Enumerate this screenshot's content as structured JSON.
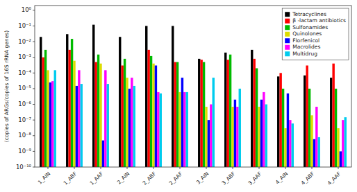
{
  "chart_data": {
    "type": "bar",
    "categories": [
      "1_AIN",
      "1_ABF",
      "1_AAF",
      "2_AIN",
      "2_ABF",
      "2_AAF",
      "3_AIN",
      "3_ABF",
      "3_AAF",
      "4_AIN",
      "4_ABF",
      "4_AAF"
    ],
    "series": [
      {
        "name": "Tetracyclines",
        "color": "#000000",
        "values": [
          0.02,
          0.03,
          0.12,
          0.02,
          0.1,
          0.1,
          0.0008,
          0.002,
          0.003,
          6e-05,
          7e-05,
          5e-05
        ]
      },
      {
        "name": "β -lactam antibiotics",
        "color": "#ff0000",
        "values": [
          0.001,
          0.003,
          0.0005,
          0.0003,
          0.003,
          0.0005,
          0.0007,
          0.0007,
          0.0008,
          0.0001,
          0.0003,
          0.0004
        ]
      },
      {
        "name": "Sulfonamides",
        "color": "#00bb00",
        "values": [
          0.003,
          0.015,
          0.0015,
          0.0008,
          0.0012,
          0.0005,
          0.0005,
          0.0015,
          0.0002,
          1e-05,
          1e-05,
          1e-05
        ]
      },
      {
        "name": "Quinolones",
        "color": "#dddd00",
        "values": [
          0.00015,
          0.0006,
          0.0004,
          5e-05,
          0.0004,
          6e-06,
          7e-07,
          7e-07,
          7e-07,
          3e-08,
          2e-07,
          3e-08
        ]
      },
      {
        "name": "Florfenicol",
        "color": "#0000ff",
        "values": [
          2.5e-05,
          1.5e-05,
          5e-09,
          1e-05,
          0.0003,
          5e-05,
          1e-07,
          2e-06,
          2e-06,
          5e-06,
          6e-09,
          1e-09
        ]
      },
      {
        "name": "Macrolides",
        "color": "#ff00ff",
        "values": [
          3e-05,
          0.00015,
          0.00015,
          5e-05,
          6e-06,
          6e-06,
          1e-06,
          7e-07,
          6e-06,
          1e-07,
          7e-07,
          1e-07
        ]
      },
      {
        "name": "Multidrug",
        "color": "#00ccee",
        "values": [
          0.00015,
          2e-05,
          2e-05,
          1.5e-05,
          5e-06,
          6e-06,
          5e-05,
          1e-05,
          1e-06,
          6e-08,
          8e-09,
          1.5e-07
        ]
      }
    ],
    "ylabel": "(copies of ARGs/copies of 16S rRNA genes)",
    "ylim": [
      1e-10,
      2
    ],
    "yticks": [
      {
        "value": 1e-10,
        "label": "10⁻¹⁰"
      },
      {
        "value": 1e-09,
        "label": "10⁻⁹"
      },
      {
        "value": 1e-08,
        "label": "10⁻⁸"
      },
      {
        "value": 1e-07,
        "label": "10⁻⁷"
      },
      {
        "value": 1e-06,
        "label": "10⁻⁶"
      },
      {
        "value": 1e-05,
        "label": "10⁻⁵"
      },
      {
        "value": 0.0001,
        "label": "10⁻⁴"
      },
      {
        "value": 0.001,
        "label": "10⁻³"
      },
      {
        "value": 0.01,
        "label": "10⁻²"
      },
      {
        "value": 0.1,
        "label": "10⁻¹"
      },
      {
        "value": 1,
        "label": "10⁰"
      }
    ],
    "log": "y",
    "legend": "upper-right",
    "grid": false
  }
}
